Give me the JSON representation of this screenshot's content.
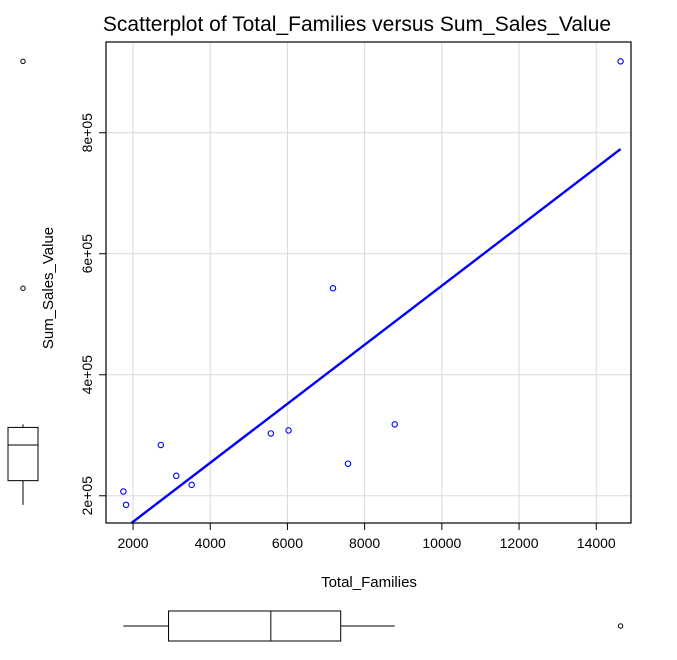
{
  "chart_data": {
    "type": "scatter",
    "title": "Scatterplot of Total_Families versus Sum_Sales_Value",
    "xlabel": "Total_Families",
    "ylabel": "Sum_Sales_Value",
    "xlim": [
      1300,
      14900
    ],
    "ylim": [
      155000,
      950000
    ],
    "x_ticks": [
      2000,
      4000,
      6000,
      8000,
      10000,
      12000,
      14000
    ],
    "x_tick_labels": [
      "2000",
      "4000",
      "6000",
      "8000",
      "10000",
      "12000",
      "14000"
    ],
    "y_ticks": [
      200000,
      400000,
      600000,
      800000
    ],
    "y_tick_labels": [
      "2e+05",
      "4e+05",
      "6e+05",
      "8e+05"
    ],
    "grid": true,
    "points": {
      "x": [
        1750,
        1820,
        2720,
        3120,
        3520,
        5570,
        6030,
        7180,
        7570,
        8780,
        14630
      ],
      "y": [
        207000,
        185000,
        284000,
        233000,
        218000,
        303000,
        308000,
        543000,
        253000,
        318000,
        918000
      ],
      "color": "#0000FF"
    },
    "regression_line": {
      "x": [
        1960,
        14630
      ],
      "y": [
        155000,
        773000
      ],
      "color": "#0000FF"
    },
    "marginal_boxplot_x": {
      "min": 1750,
      "q1": 2920,
      "median": 5570,
      "q3": 7380,
      "whisker_max": 8780,
      "outliers": [
        14630
      ]
    },
    "marginal_boxplot_y": {
      "min": 185000,
      "q1": 225000,
      "median": 284000,
      "q3": 313000,
      "whisker_max": 318000,
      "outliers": [
        543000,
        918000
      ]
    }
  }
}
